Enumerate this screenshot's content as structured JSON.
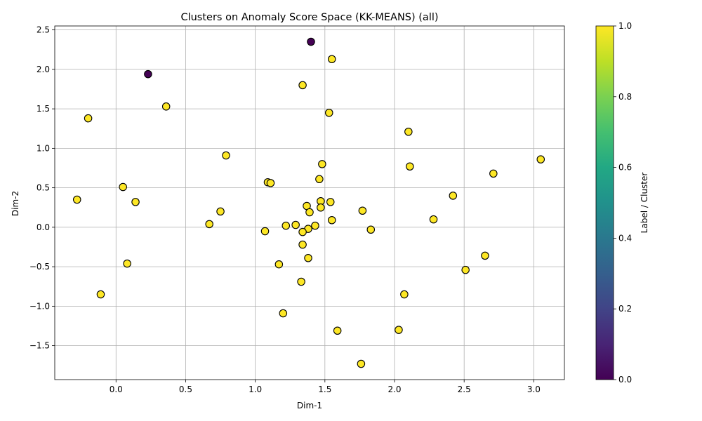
{
  "chart_data": {
    "type": "scatter",
    "title": "Clusters on Anomaly Score Space (KK-MEANS) (all)",
    "xlabel": "Dim-1",
    "ylabel": "Dim-2",
    "xlim": [
      -0.44,
      3.22
    ],
    "ylim": [
      -1.93,
      2.55
    ],
    "xticks": [
      0.0,
      0.5,
      1.0,
      1.5,
      2.0,
      2.5,
      3.0
    ],
    "xtick_labels": [
      "0.0",
      "0.5",
      "1.0",
      "1.5",
      "2.0",
      "2.5",
      "3.0"
    ],
    "yticks": [
      -1.5,
      -1.0,
      -0.5,
      0.0,
      0.5,
      1.0,
      1.5,
      2.0,
      2.5
    ],
    "ytick_labels": [
      "−1.5",
      "−1.0",
      "−0.5",
      "0.0",
      "0.5",
      "1.0",
      "1.5",
      "2.0",
      "2.5"
    ],
    "grid": true,
    "colorbar": {
      "label": "Label / Cluster",
      "range": [
        0.0,
        1.0
      ],
      "ticks": [
        0.0,
        0.2,
        0.4,
        0.6,
        0.8,
        1.0
      ],
      "tick_labels": [
        "0.0",
        "0.2",
        "0.4",
        "0.6",
        "0.8",
        "1.0"
      ],
      "colormap": "viridis"
    },
    "points": [
      {
        "x": 1.4,
        "y": 2.35,
        "label": 0
      },
      {
        "x": 0.23,
        "y": 1.94,
        "label": 0
      },
      {
        "x": 1.55,
        "y": 2.13,
        "label": 1
      },
      {
        "x": 1.34,
        "y": 1.8,
        "label": 1
      },
      {
        "x": 0.36,
        "y": 1.53,
        "label": 1
      },
      {
        "x": -0.2,
        "y": 1.38,
        "label": 1
      },
      {
        "x": 1.53,
        "y": 1.45,
        "label": 1
      },
      {
        "x": 2.1,
        "y": 1.21,
        "label": 1
      },
      {
        "x": 0.79,
        "y": 0.91,
        "label": 1
      },
      {
        "x": 3.05,
        "y": 0.86,
        "label": 1
      },
      {
        "x": 1.48,
        "y": 0.8,
        "label": 1
      },
      {
        "x": 2.11,
        "y": 0.77,
        "label": 1
      },
      {
        "x": 2.71,
        "y": 0.68,
        "label": 1
      },
      {
        "x": 1.46,
        "y": 0.61,
        "label": 1
      },
      {
        "x": 1.09,
        "y": 0.57,
        "label": 1
      },
      {
        "x": 1.11,
        "y": 0.56,
        "label": 1
      },
      {
        "x": 0.05,
        "y": 0.51,
        "label": 1
      },
      {
        "x": 2.42,
        "y": 0.4,
        "label": 1
      },
      {
        "x": -0.28,
        "y": 0.35,
        "label": 1
      },
      {
        "x": 1.47,
        "y": 0.33,
        "label": 1
      },
      {
        "x": 0.14,
        "y": 0.32,
        "label": 1
      },
      {
        "x": 1.54,
        "y": 0.32,
        "label": 1
      },
      {
        "x": 1.37,
        "y": 0.27,
        "label": 1
      },
      {
        "x": 1.47,
        "y": 0.25,
        "label": 1
      },
      {
        "x": 1.77,
        "y": 0.21,
        "label": 1
      },
      {
        "x": 0.75,
        "y": 0.2,
        "label": 1
      },
      {
        "x": 1.39,
        "y": 0.19,
        "label": 1
      },
      {
        "x": 2.28,
        "y": 0.1,
        "label": 1
      },
      {
        "x": 1.55,
        "y": 0.09,
        "label": 1
      },
      {
        "x": 0.67,
        "y": 0.04,
        "label": 1
      },
      {
        "x": 1.29,
        "y": 0.03,
        "label": 1
      },
      {
        "x": 1.22,
        "y": 0.02,
        "label": 1
      },
      {
        "x": 1.43,
        "y": 0.02,
        "label": 1
      },
      {
        "x": 1.38,
        "y": -0.02,
        "label": 1
      },
      {
        "x": 1.83,
        "y": -0.03,
        "label": 1
      },
      {
        "x": 1.07,
        "y": -0.05,
        "label": 1
      },
      {
        "x": 1.34,
        "y": -0.06,
        "label": 1
      },
      {
        "x": 1.34,
        "y": -0.22,
        "label": 1
      },
      {
        "x": 2.65,
        "y": -0.36,
        "label": 1
      },
      {
        "x": 1.38,
        "y": -0.39,
        "label": 1
      },
      {
        "x": 0.08,
        "y": -0.46,
        "label": 1
      },
      {
        "x": 1.17,
        "y": -0.47,
        "label": 1
      },
      {
        "x": 2.51,
        "y": -0.54,
        "label": 1
      },
      {
        "x": 1.33,
        "y": -0.69,
        "label": 1
      },
      {
        "x": -0.11,
        "y": -0.85,
        "label": 1
      },
      {
        "x": 2.07,
        "y": -0.85,
        "label": 1
      },
      {
        "x": 1.2,
        "y": -1.09,
        "label": 1
      },
      {
        "x": 2.03,
        "y": -1.3,
        "label": 1
      },
      {
        "x": 1.59,
        "y": -1.31,
        "label": 1
      },
      {
        "x": 1.76,
        "y": -1.73,
        "label": 1
      }
    ],
    "colors": {
      "cluster_0": "#440154",
      "cluster_1": "#fde725"
    }
  }
}
